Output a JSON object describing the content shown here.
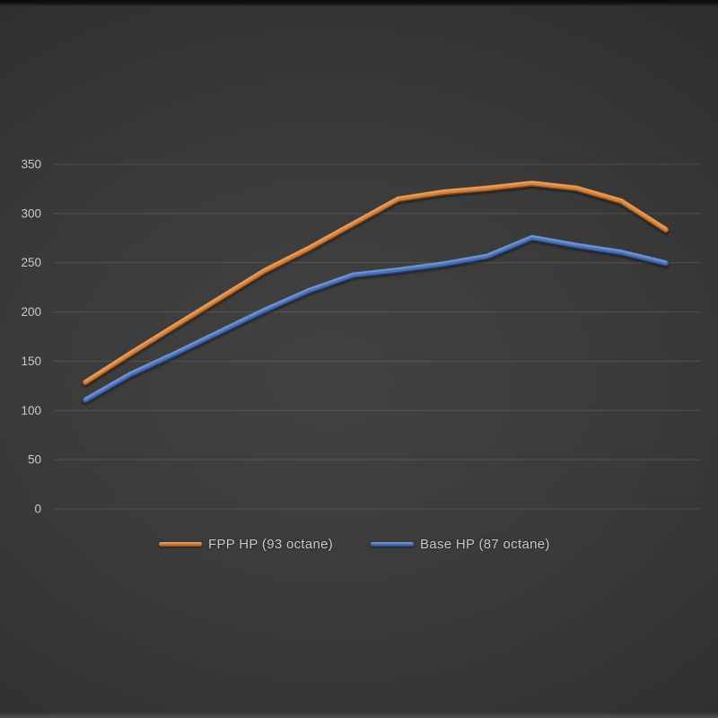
{
  "chart_data": {
    "type": "line",
    "title": "",
    "x": [
      1,
      2,
      3,
      4,
      5,
      6,
      7,
      8,
      9,
      10,
      11,
      12,
      13,
      14
    ],
    "x_axis_labels_visible": false,
    "ylim": [
      0,
      350
    ],
    "y_tick_labels": [
      350,
      300,
      250,
      200,
      150,
      100,
      50,
      0
    ],
    "grid": true,
    "legend_position": "bottom",
    "series": [
      {
        "name": "FPP HP (93 octane)",
        "color": "#d2803c",
        "highlight": "#f7ab67",
        "dark": "#8a4e1f",
        "values": [
          129,
          158,
          186,
          214,
          242,
          265,
          290,
          315,
          322,
          326,
          331,
          326,
          313,
          284
        ]
      },
      {
        "name": "Base HP (87 octane)",
        "color": "#4b72b8",
        "highlight": "#85a7dd",
        "dark": "#2c4a85",
        "values": [
          111,
          137,
          158,
          180,
          202,
          222,
          238,
          243,
          249,
          257,
          276,
          268,
          261,
          250
        ]
      }
    ]
  },
  "style": {
    "background_center": "#424242",
    "background_edge": "#222222",
    "gridline_color": "rgba(255,255,255,0.12)",
    "tick_text_color": "#c9c9c9",
    "legend_text_color": "#c8c8c8"
  }
}
